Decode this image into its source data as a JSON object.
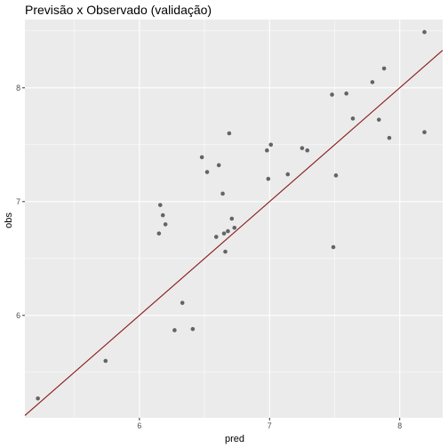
{
  "chart_data": {
    "type": "scatter",
    "title": "Previsão x Observado (validação)",
    "xlabel": "pred",
    "ylabel": "obs",
    "xlim": [
      5.12,
      8.33
    ],
    "ylim": [
      5.1,
      8.6
    ],
    "x_ticks": [
      6,
      7,
      8
    ],
    "y_ticks": [
      6,
      7,
      8
    ],
    "x_tick_labels": [
      "6",
      "7",
      "8"
    ],
    "y_tick_labels": [
      "6",
      "7",
      "8"
    ],
    "grid": true,
    "legend": "none",
    "reference_line": {
      "type": "identity",
      "color": "#8B1A1A"
    },
    "colors": {
      "panel": "#EBEBEB",
      "grid_major": "#FFFFFF",
      "point": "#555555"
    },
    "points": [
      {
        "x": 5.22,
        "y": 5.27
      },
      {
        "x": 5.74,
        "y": 5.6
      },
      {
        "x": 6.15,
        "y": 6.72
      },
      {
        "x": 6.16,
        "y": 6.97
      },
      {
        "x": 6.18,
        "y": 6.88
      },
      {
        "x": 6.2,
        "y": 6.8
      },
      {
        "x": 6.27,
        "y": 5.87
      },
      {
        "x": 6.33,
        "y": 6.11
      },
      {
        "x": 6.41,
        "y": 5.88
      },
      {
        "x": 6.48,
        "y": 7.39
      },
      {
        "x": 6.52,
        "y": 7.26
      },
      {
        "x": 6.59,
        "y": 6.69
      },
      {
        "x": 6.61,
        "y": 7.32
      },
      {
        "x": 6.64,
        "y": 7.07
      },
      {
        "x": 6.65,
        "y": 6.72
      },
      {
        "x": 6.66,
        "y": 6.56
      },
      {
        "x": 6.68,
        "y": 6.74
      },
      {
        "x": 6.69,
        "y": 7.6
      },
      {
        "x": 6.71,
        "y": 6.85
      },
      {
        "x": 6.73,
        "y": 6.77
      },
      {
        "x": 6.98,
        "y": 7.45
      },
      {
        "x": 6.99,
        "y": 7.2
      },
      {
        "x": 7.01,
        "y": 7.5
      },
      {
        "x": 7.14,
        "y": 7.24
      },
      {
        "x": 7.25,
        "y": 7.47
      },
      {
        "x": 7.29,
        "y": 7.45
      },
      {
        "x": 7.48,
        "y": 7.94
      },
      {
        "x": 7.49,
        "y": 6.6
      },
      {
        "x": 7.51,
        "y": 7.23
      },
      {
        "x": 7.59,
        "y": 7.95
      },
      {
        "x": 7.64,
        "y": 7.73
      },
      {
        "x": 7.79,
        "y": 8.05
      },
      {
        "x": 7.84,
        "y": 7.72
      },
      {
        "x": 7.88,
        "y": 8.17
      },
      {
        "x": 7.92,
        "y": 7.56
      },
      {
        "x": 8.19,
        "y": 8.49
      },
      {
        "x": 8.19,
        "y": 7.61
      }
    ]
  }
}
